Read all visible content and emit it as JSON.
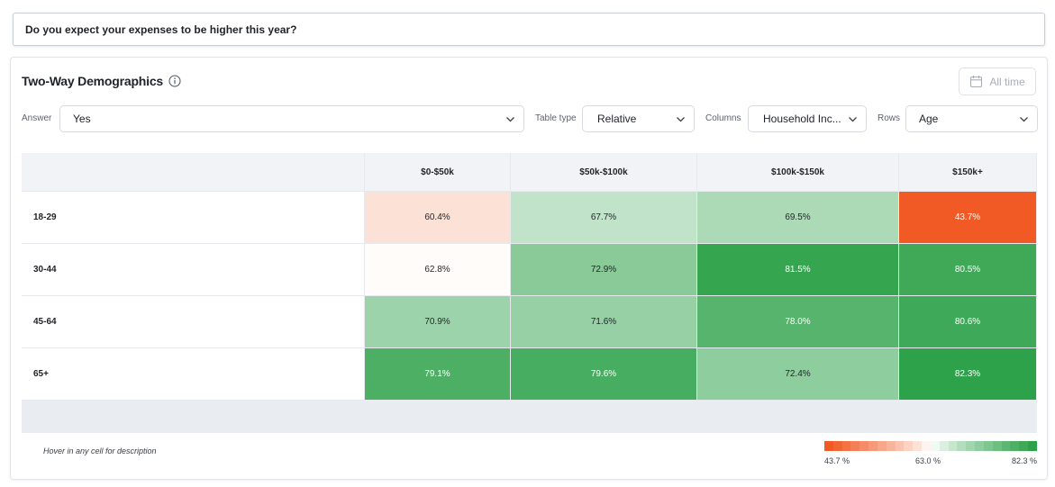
{
  "question": "Do you expect your expenses to be higher this year?",
  "card": {
    "title": "Two-Way Demographics",
    "time_filter": "All time"
  },
  "filters": {
    "answer_label": "Answer",
    "answer_value": "Yes",
    "table_type_label": "Table type",
    "table_type_value": "Relative",
    "columns_label": "Columns",
    "columns_value": "Household Inc...",
    "rows_label": "Rows",
    "rows_value": "Age"
  },
  "table": {
    "columns": [
      "$0-$50k",
      "$50k-$100k",
      "$100k-$150k",
      "$150k+"
    ],
    "rows": [
      {
        "label": "18-29",
        "values": [
          "60.4%",
          "67.7%",
          "69.5%",
          "43.7%"
        ],
        "nums": [
          60.4,
          67.7,
          69.5,
          43.7
        ]
      },
      {
        "label": "30-44",
        "values": [
          "62.8%",
          "72.9%",
          "81.5%",
          "80.5%"
        ],
        "nums": [
          62.8,
          72.9,
          81.5,
          80.5
        ]
      },
      {
        "label": "45-64",
        "values": [
          "70.9%",
          "71.6%",
          "78.0%",
          "80.6%"
        ],
        "nums": [
          70.9,
          71.6,
          78.0,
          80.6
        ]
      },
      {
        "label": "65+",
        "values": [
          "79.1%",
          "79.6%",
          "72.4%",
          "82.3%"
        ],
        "nums": [
          79.1,
          79.6,
          72.4,
          82.3
        ]
      }
    ]
  },
  "hint": "Hover in any cell for description",
  "legend": {
    "min_label": "43.7 %",
    "mid_label": "63.0 %",
    "max_label": "82.3 %",
    "min": 43.7,
    "mid": 63.0,
    "max": 82.3,
    "low_color": "#f15a24",
    "high_color": "#2ea24a",
    "neutral_color": "#ffffff"
  }
}
